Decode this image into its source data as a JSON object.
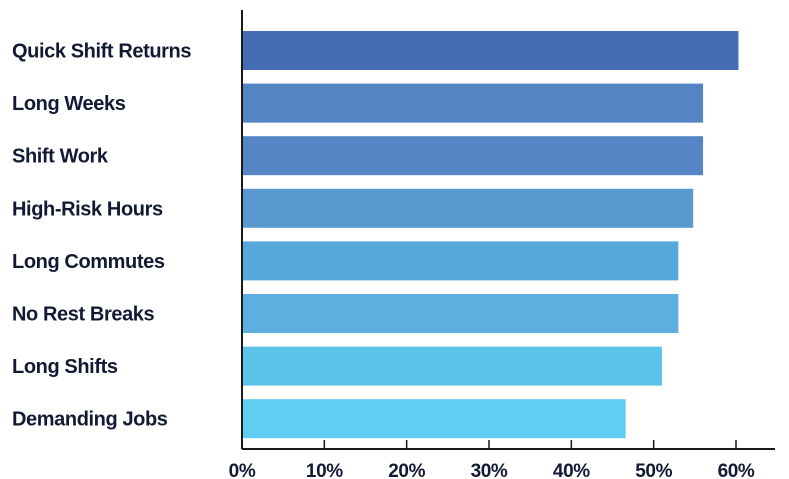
{
  "chart_data": {
    "type": "bar",
    "orientation": "horizontal",
    "title": "",
    "xlabel": "",
    "ylabel": "",
    "categories": [
      "Quick Shift Returns",
      "Long Weeks",
      "Shift Work",
      "High-Risk Hours",
      "Long Commutes",
      "No Rest Breaks",
      "Long Shifts",
      "Demanding Jobs"
    ],
    "values": [
      60.3,
      56.0,
      56.0,
      54.8,
      53.0,
      53.0,
      51.0,
      46.6
    ],
    "value_unit": "%",
    "xlim": [
      0,
      65
    ],
    "x_ticks": [
      {
        "value": 0,
        "label": "0%"
      },
      {
        "value": 10,
        "label": "10%"
      },
      {
        "value": 20,
        "label": "20%"
      },
      {
        "value": 30,
        "label": "30%"
      },
      {
        "value": 40,
        "label": "40%"
      },
      {
        "value": 50,
        "label": "50%"
      },
      {
        "value": 60,
        "label": "60%"
      }
    ],
    "grid": false,
    "legend": "none",
    "bar_colors": [
      "#456db5",
      "#5384c4",
      "#5485c5",
      "#5a99d0",
      "#57a8da",
      "#5eafe0",
      "#5bc3e8",
      "#60cdf3"
    ],
    "axis_color": "#1a1a1a",
    "label_color": "#121a33"
  }
}
